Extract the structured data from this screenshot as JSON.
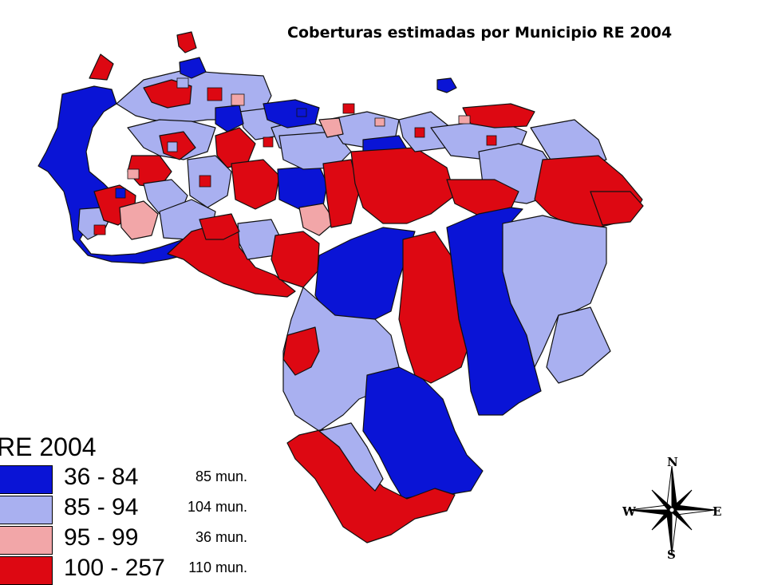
{
  "map": {
    "title": "Coberturas estimadas por Municipio RE 2004",
    "colors": {
      "range_36_84": "#0a14d6",
      "range_85_94": "#a9b0f0",
      "range_95_99": "#f2a6a8",
      "range_100_257": "#dd0812",
      "border": "#111111"
    }
  },
  "legend": {
    "title": "RE 2004",
    "items": [
      {
        "range": "36 - 84",
        "count": "85 mun.",
        "color": "#0a14d6"
      },
      {
        "range": "85 - 94",
        "count": "104 mun.",
        "color": "#a9b0f0"
      },
      {
        "range": "95 - 99",
        "count": "36 mun.",
        "color": "#f2a6a8"
      },
      {
        "range": "100 - 257",
        "count": "110 mun.",
        "color": "#dd0812"
      }
    ]
  },
  "compass": {
    "north": "N",
    "south": "S",
    "east": "E",
    "west": "W",
    "icon": "compass-rose-icon"
  }
}
